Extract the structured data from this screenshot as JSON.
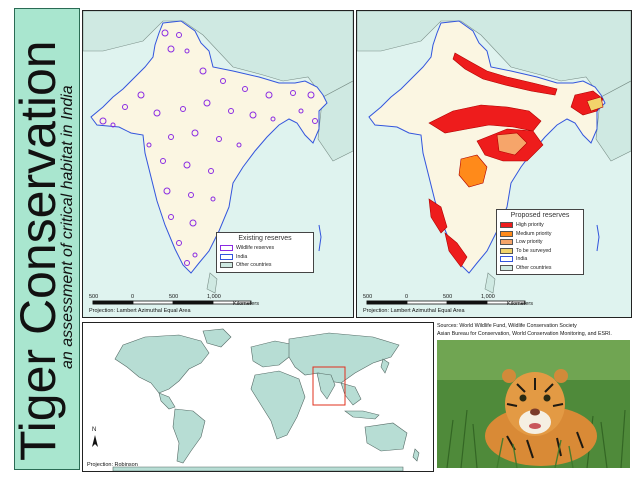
{
  "title": {
    "main": "Tiger Conservation",
    "subtitle": "an assessment of critical habitat in India"
  },
  "colors": {
    "title_band": "#a9e6cf",
    "water": "#dff3ef",
    "land": "#fbf6e2",
    "other_countries": "#cfe9e2",
    "reserve_outline": "#8a2be2",
    "high_priority": "#ee1c1c",
    "medium_priority": "#ff8a1a",
    "low_priority": "#f6a56a",
    "to_be_surveyed": "#f2d36b"
  },
  "map_existing": {
    "legend_title": "Existing reserves",
    "legend_items": [
      {
        "label": "Wildlife reserves",
        "color": "#ffffff",
        "border": "#8a2be2"
      },
      {
        "label": "India",
        "color": "#ffffff",
        "border": "#3355dd"
      },
      {
        "label": "Other countries",
        "color": "#cfe9e2",
        "border": "#555555"
      }
    ],
    "scale_labels": [
      "500",
      "0",
      "500",
      "1,000"
    ],
    "scale_unit": "Kilometers",
    "projection": "Projection: Lambert Azimuthal Equal Area"
  },
  "map_proposed": {
    "legend_title": "Proposed reserves",
    "legend_items": [
      {
        "label": "High priority",
        "color": "#ee1c1c",
        "border": "#555555"
      },
      {
        "label": "Medium priority",
        "color": "#ff8a1a",
        "border": "#555555"
      },
      {
        "label": "Low priority",
        "color": "#f6a56a",
        "border": "#555555"
      },
      {
        "label": "To be surveyed",
        "color": "#f2d36b",
        "border": "#555555"
      },
      {
        "label": "India",
        "color": "#ffffff",
        "border": "#3355dd"
      },
      {
        "label": "Other countries",
        "color": "#cfe9e2",
        "border": "#555555"
      }
    ],
    "scale_labels": [
      "500",
      "0",
      "500",
      "1,000"
    ],
    "scale_unit": "Kilometers",
    "projection": "Projection: Lambert Azimuthal Equal Area"
  },
  "world_map": {
    "north_label": "N",
    "projection": "Projection: Robinson"
  },
  "credits": {
    "line1": "Sources: World Wildlife Fund, Wildlife Conservation Society",
    "line2": "Asian Bureau for Conservation, World Conservation Monitoring, and ESRI."
  },
  "photo": {
    "subject": "tiger-photo"
  }
}
